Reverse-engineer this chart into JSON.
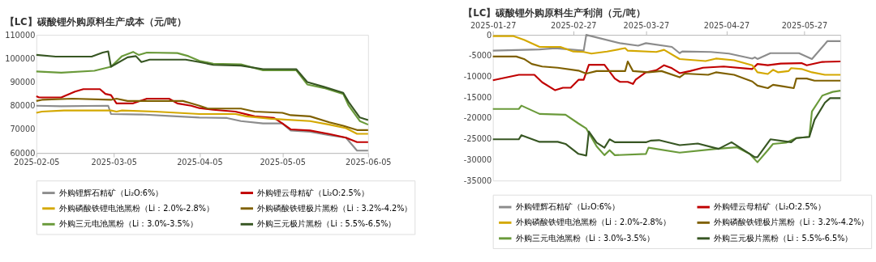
{
  "chart_data": [
    {
      "type": "line",
      "title": "【LC】碳酸锂外购原料生产成本（元/吨）",
      "xlim": [
        "2025-02-05",
        "2025-06-05"
      ],
      "xticks": [
        "2025-02-05",
        "2025-03-05",
        "2025-04-05",
        "2025-05-05",
        "2025-06-05"
      ],
      "ylim": [
        60000,
        110000
      ],
      "yticks": [
        60000,
        70000,
        80000,
        90000,
        100000,
        110000
      ],
      "grid": false,
      "legend": "bottom",
      "series": [
        {
          "name": "外购锂辉石精矿（Li₂O:6%）",
          "color": "#8c8c8c",
          "x": [
            "2025-02-05",
            "2025-02-14",
            "2025-03-03",
            "2025-03-04",
            "2025-03-15",
            "2025-03-25",
            "2025-04-05",
            "2025-04-15",
            "2025-04-20",
            "2025-04-28",
            "2025-05-05",
            "2025-05-08",
            "2025-05-15",
            "2025-05-22",
            "2025-05-28",
            "2025-06-01",
            "2025-06-05"
          ],
          "values": [
            80000,
            79800,
            80000,
            76500,
            76300,
            75700,
            75000,
            74800,
            73500,
            72500,
            72500,
            69500,
            69000,
            67500,
            66500,
            61000,
            61000
          ]
        },
        {
          "name": "外购锂云母精矿（Li₂O:2.5%）",
          "color": "#c00000",
          "x": [
            "2025-02-05",
            "2025-02-06",
            "2025-02-14",
            "2025-02-19",
            "2025-02-22",
            "2025-02-28",
            "2025-03-02",
            "2025-03-04",
            "2025-03-06",
            "2025-03-12",
            "2025-03-17",
            "2025-03-25",
            "2025-03-28",
            "2025-04-02",
            "2025-04-05",
            "2025-04-10",
            "2025-04-18",
            "2025-04-25",
            "2025-05-02",
            "2025-05-05",
            "2025-05-08",
            "2025-05-15",
            "2025-05-22",
            "2025-05-28",
            "2025-06-01",
            "2025-06-05"
          ],
          "values": [
            84000,
            83500,
            83500,
            86000,
            87000,
            87000,
            85000,
            84500,
            81000,
            81000,
            83000,
            83000,
            81000,
            80000,
            79000,
            78300,
            77500,
            75500,
            74800,
            72500,
            70000,
            69500,
            68000,
            66500,
            64600,
            64600
          ]
        },
        {
          "name": "外购磷酸铁锂电池黑粉（Li：2.0%-2.8%）",
          "color": "#d4a800",
          "x": [
            "2025-02-05",
            "2025-02-07",
            "2025-02-15",
            "2025-03-04",
            "2025-03-06",
            "2025-03-08",
            "2025-03-20",
            "2025-04-05",
            "2025-04-18",
            "2025-04-22",
            "2025-05-01",
            "2025-05-15",
            "2025-05-22",
            "2025-05-28",
            "2025-06-01",
            "2025-06-05"
          ],
          "values": [
            77000,
            77500,
            78000,
            78000,
            77500,
            78000,
            77500,
            76500,
            76500,
            75500,
            74500,
            73500,
            72000,
            70500,
            68100,
            68100
          ]
        },
        {
          "name": "外购磷酸铁锂极片黑粉（Li：3.2%-4.2%）",
          "color": "#7f6000",
          "x": [
            "2025-02-05",
            "2025-02-07",
            "2025-02-18",
            "2025-03-04",
            "2025-03-06",
            "2025-03-10",
            "2025-03-30",
            "2025-04-02",
            "2025-04-05",
            "2025-04-08",
            "2025-04-20",
            "2025-04-25",
            "2025-05-05",
            "2025-05-08",
            "2025-05-15",
            "2025-05-22",
            "2025-05-27",
            "2025-06-01",
            "2025-06-05"
          ],
          "values": [
            82000,
            82500,
            83000,
            82500,
            83000,
            82000,
            82000,
            81000,
            80000,
            78800,
            78800,
            77500,
            77000,
            76000,
            75500,
            73000,
            71500,
            69700,
            69700
          ]
        },
        {
          "name": "外购三元电池黑粉（Li：3.0%-3.5%）",
          "color": "#6a9a3a",
          "x": [
            "2025-02-05",
            "2025-02-14",
            "2025-02-26",
            "2025-03-04",
            "2025-03-08",
            "2025-03-12",
            "2025-03-14",
            "2025-03-17",
            "2025-03-28",
            "2025-04-01",
            "2025-04-05",
            "2025-04-10",
            "2025-04-20",
            "2025-04-28",
            "2025-05-10",
            "2025-05-14",
            "2025-05-20",
            "2025-05-27",
            "2025-05-29",
            "2025-06-02",
            "2025-06-05"
          ],
          "values": [
            94500,
            94000,
            94800,
            96500,
            101000,
            102800,
            101500,
            102500,
            102300,
            101000,
            99000,
            97800,
            97500,
            95000,
            95000,
            89000,
            87500,
            85000,
            80000,
            73500,
            72000
          ]
        },
        {
          "name": "外购三元极片黑粉（Li：5.5%-6.5%）",
          "color": "#375623",
          "x": [
            "2025-02-05",
            "2025-02-12",
            "2025-02-25",
            "2025-03-01",
            "2025-03-03",
            "2025-03-04",
            "2025-03-10",
            "2025-03-13",
            "2025-03-15",
            "2025-03-18",
            "2025-03-31",
            "2025-04-05",
            "2025-04-10",
            "2025-04-20",
            "2025-04-28",
            "2025-05-10",
            "2025-05-14",
            "2025-05-20",
            "2025-05-27",
            "2025-05-29",
            "2025-06-02",
            "2025-06-05"
          ],
          "values": [
            101500,
            100800,
            100800,
            102500,
            103000,
            96500,
            100500,
            101000,
            98500,
            99500,
            99500,
            98500,
            97300,
            97000,
            95500,
            95500,
            90000,
            88000,
            85500,
            81500,
            75000,
            73900
          ]
        }
      ]
    },
    {
      "type": "line",
      "title": "【LC】碳酸锂外购原料生产利润（元/吨）",
      "xlim": [
        "2025-01-27",
        "2025-06-10"
      ],
      "xticks": [
        "2025-01-27",
        "2025-02-27",
        "2025-03-27",
        "2025-04-27",
        "2025-05-27"
      ],
      "ylim": [
        -35000,
        0
      ],
      "yticks": [
        0,
        -5000,
        -10000,
        -15000,
        -20000,
        -25000,
        -30000,
        -35000
      ],
      "grid": false,
      "legend": "bottom",
      "series": [
        {
          "name": "外购锂辉石精矿（Li₂O:6%）",
          "color": "#8c8c8c",
          "x": [
            "2025-01-27",
            "2025-02-14",
            "2025-02-20",
            "2025-03-03",
            "2025-03-04",
            "2025-03-17",
            "2025-03-24",
            "2025-03-27",
            "2025-04-06",
            "2025-04-09",
            "2025-04-10",
            "2025-04-21",
            "2025-04-28",
            "2025-05-07",
            "2025-05-08",
            "2025-05-09",
            "2025-05-14",
            "2025-05-25",
            "2025-05-30",
            "2025-06-05",
            "2025-06-10"
          ],
          "values": [
            -3800,
            -3500,
            -3200,
            -3800,
            0,
            -2000,
            -2600,
            -2000,
            -2900,
            -4400,
            -4000,
            -4100,
            -4500,
            -5700,
            -5400,
            -5800,
            -4400,
            -4400,
            -5800,
            -1500,
            -1500
          ]
        },
        {
          "name": "外购锂云母精矿（Li₂O:2.5%）",
          "color": "#c00000",
          "x": [
            "2025-01-27",
            "2025-02-06",
            "2025-02-12",
            "2025-02-15",
            "2025-02-20",
            "2025-02-23",
            "2025-02-26",
            "2025-03-01",
            "2025-03-03",
            "2025-03-05",
            "2025-03-11",
            "2025-03-15",
            "2025-03-17",
            "2025-03-20",
            "2025-03-22",
            "2025-03-23",
            "2025-03-27",
            "2025-03-31",
            "2025-04-03",
            "2025-04-06",
            "2025-04-09",
            "2025-04-13",
            "2025-04-18",
            "2025-04-26",
            "2025-05-07",
            "2025-05-09",
            "2025-05-13",
            "2025-05-18",
            "2025-05-26",
            "2025-05-28",
            "2025-06-03",
            "2025-06-10"
          ],
          "values": [
            -10900,
            -9600,
            -9600,
            -11400,
            -13300,
            -12700,
            -12700,
            -10800,
            -10800,
            -7200,
            -7200,
            -10500,
            -11300,
            -11300,
            -11800,
            -10800,
            -9000,
            -8500,
            -7300,
            -8000,
            -9200,
            -8700,
            -7900,
            -7600,
            -8200,
            -7000,
            -7300,
            -6900,
            -6800,
            -7300,
            -6500,
            -6400
          ]
        },
        {
          "name": "外购磷酸铁锂电池黑粉（Li：2.0%-2.8%）",
          "color": "#d4a800",
          "x": [
            "2025-01-27",
            "2025-02-04",
            "2025-02-08",
            "2025-02-14",
            "2025-02-22",
            "2025-02-27",
            "2025-03-03",
            "2025-03-06",
            "2025-03-12",
            "2025-03-19",
            "2025-03-20",
            "2025-03-31",
            "2025-04-03",
            "2025-04-09",
            "2025-04-19",
            "2025-04-23",
            "2025-04-30",
            "2025-05-07",
            "2025-05-09",
            "2025-05-13",
            "2025-05-15",
            "2025-05-17",
            "2025-05-21",
            "2025-05-22",
            "2025-05-26",
            "2025-05-30",
            "2025-06-04",
            "2025-06-10"
          ],
          "values": [
            -300,
            -300,
            -1200,
            -2900,
            -2900,
            -4000,
            -4100,
            -4500,
            -4000,
            -3200,
            -3800,
            -4100,
            -3600,
            -5800,
            -6300,
            -5700,
            -6100,
            -7300,
            -9000,
            -9400,
            -8400,
            -9000,
            -8700,
            -8000,
            -8200,
            -9000,
            -9600,
            -9600
          ]
        },
        {
          "name": "外购磷酸铁锂极片黑粉（Li：3.2%-4.2%）",
          "color": "#7f6000",
          "x": [
            "2025-01-27",
            "2025-02-05",
            "2025-02-08",
            "2025-02-11",
            "2025-02-15",
            "2025-02-21",
            "2025-03-01",
            "2025-03-04",
            "2025-03-08",
            "2025-03-19",
            "2025-03-20",
            "2025-03-22",
            "2025-03-28",
            "2025-04-02",
            "2025-04-09",
            "2025-04-11",
            "2025-04-20",
            "2025-04-23",
            "2025-04-30",
            "2025-05-07",
            "2025-05-09",
            "2025-05-13",
            "2025-05-15",
            "2025-05-19",
            "2025-05-23",
            "2025-05-24",
            "2025-05-28",
            "2025-05-31",
            "2025-06-10"
          ],
          "values": [
            -5200,
            -5200,
            -5800,
            -7000,
            -7600,
            -7900,
            -8600,
            -9300,
            -8700,
            -8700,
            -6400,
            -8700,
            -9000,
            -8700,
            -10200,
            -9300,
            -9600,
            -9000,
            -9600,
            -11200,
            -12200,
            -12800,
            -12000,
            -12400,
            -12800,
            -10500,
            -10500,
            -11000,
            -11000
          ]
        },
        {
          "name": "外购三元电池黑粉（Li：3.0%-3.5%）",
          "color": "#6a9a3a",
          "x": [
            "2025-01-27",
            "2025-02-06",
            "2025-02-07",
            "2025-02-14",
            "2025-02-24",
            "2025-03-01",
            "2025-03-04",
            "2025-03-08",
            "2025-03-11",
            "2025-03-13",
            "2025-03-15",
            "2025-03-27",
            "2025-03-28",
            "2025-04-09",
            "2025-04-23",
            "2025-05-01",
            "2025-05-06",
            "2025-05-09",
            "2025-05-13",
            "2025-05-15",
            "2025-05-20",
            "2025-05-24",
            "2025-05-29",
            "2025-05-30",
            "2025-06-03",
            "2025-06-07",
            "2025-06-10"
          ],
          "values": [
            -17800,
            -17800,
            -17000,
            -19000,
            -19200,
            -21300,
            -22500,
            -26800,
            -28900,
            -27700,
            -28900,
            -28600,
            -27100,
            -28300,
            -27400,
            -27000,
            -28600,
            -30600,
            -27700,
            -26200,
            -25900,
            -24800,
            -24500,
            -18400,
            -14600,
            -13700,
            -13400
          ]
        },
        {
          "name": "外购三元极片黑粉（Li：5.5%-6.5%）",
          "color": "#375623",
          "x": [
            "2025-01-27",
            "2025-02-06",
            "2025-02-07",
            "2025-02-14",
            "2025-02-21",
            "2025-02-24",
            "2025-03-01",
            "2025-03-04",
            "2025-03-05",
            "2025-03-08",
            "2025-03-11",
            "2025-03-13",
            "2025-03-15",
            "2025-03-27",
            "2025-03-29",
            "2025-04-01",
            "2025-04-09",
            "2025-04-16",
            "2025-04-24",
            "2025-04-29",
            "2025-05-08",
            "2025-05-09",
            "2025-05-14",
            "2025-05-22",
            "2025-05-24",
            "2025-05-29",
            "2025-05-31",
            "2025-06-04",
            "2025-06-06",
            "2025-06-10"
          ],
          "values": [
            -25100,
            -25100,
            -24100,
            -25700,
            -25700,
            -26200,
            -28600,
            -29000,
            -23200,
            -25900,
            -27100,
            -25100,
            -25800,
            -25800,
            -25400,
            -25300,
            -26500,
            -26100,
            -27400,
            -25800,
            -29400,
            -29400,
            -25100,
            -25800,
            -24800,
            -24500,
            -20400,
            -16300,
            -15200,
            -15200
          ]
        }
      ]
    }
  ]
}
